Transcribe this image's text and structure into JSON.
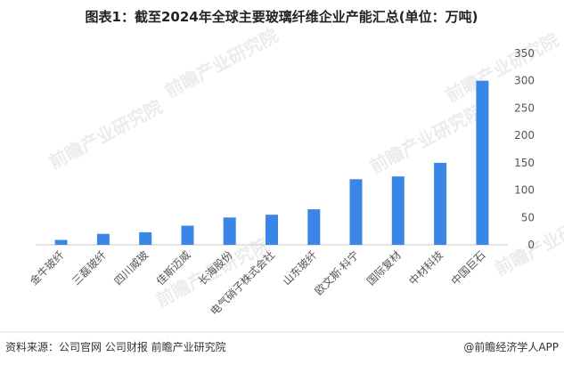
{
  "watermark": "前瞻产业研究院",
  "footer": {
    "source": "资料来源：公司官网 公司财报 前瞻产业研究院",
    "brand": "@前瞻经济学人APP"
  },
  "chart_data": {
    "type": "bar",
    "title": "图表1：截至2024年全球主要玻璃纤维企业产能汇总(单位：万吨)",
    "categories": [
      "金牛玻纤",
      "三磊玻纤",
      "四川威玻",
      "佳斯迈威",
      "长海股份",
      "电气硝子株式会社",
      "山东玻纤",
      "欧文斯·科宁",
      "国际复材",
      "中材科技",
      "中国巨石"
    ],
    "values": [
      9,
      20,
      23,
      35,
      50,
      55,
      65,
      120,
      125,
      150,
      300
    ],
    "ylim": [
      0,
      350
    ],
    "yticks": [
      0,
      50,
      100,
      150,
      200,
      250,
      300,
      350
    ],
    "y_axis_side": "right",
    "bar_color": "#3a86e6",
    "grid": false,
    "xlabel": "",
    "ylabel": ""
  }
}
